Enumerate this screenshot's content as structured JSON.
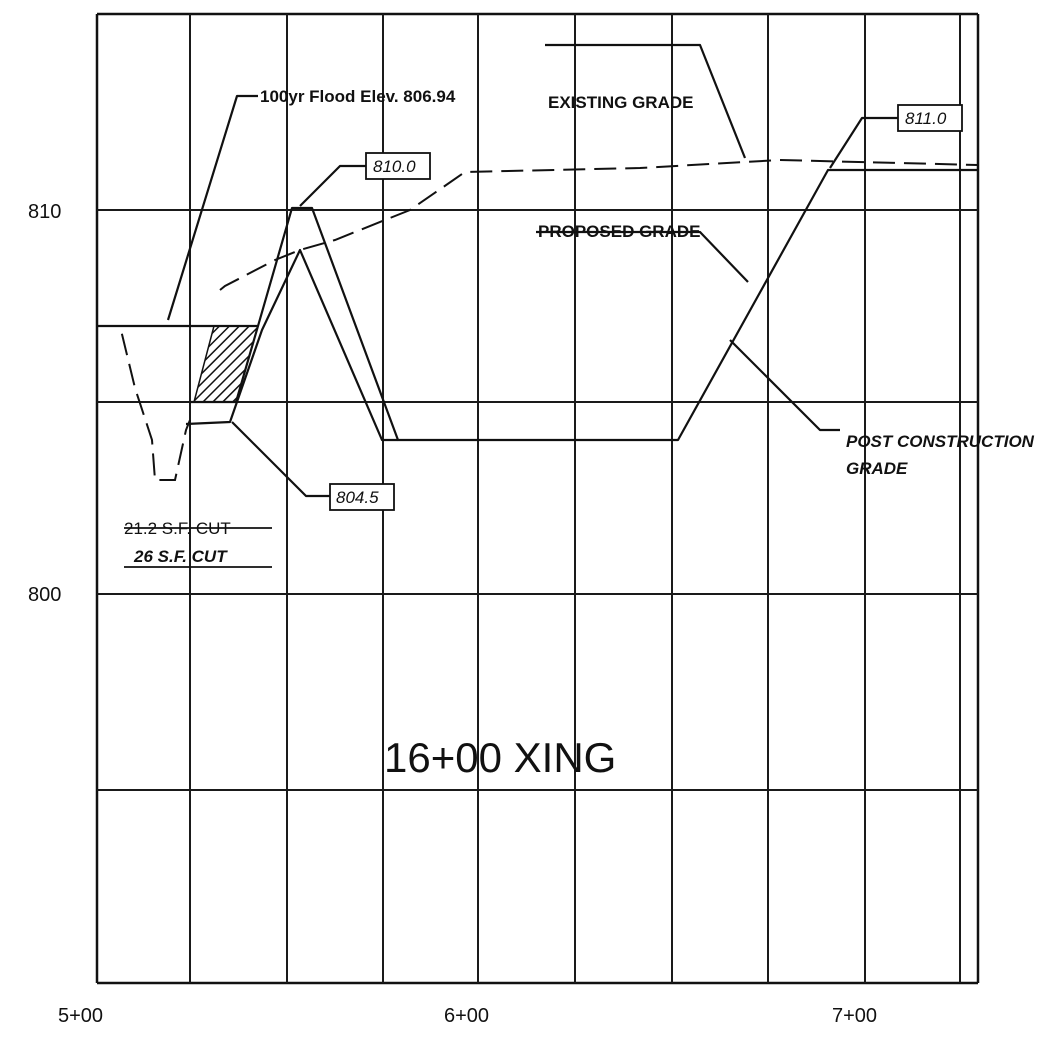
{
  "title": "16+00 XING",
  "y_ticks": [
    "810",
    "800"
  ],
  "x_ticks": [
    "5+00",
    "6+00",
    "7+00"
  ],
  "labels": {
    "flood": "100yr Flood Elev. 806.94",
    "existing_grade": "EXISTING GRADE",
    "proposed_grade": "PROPOSED GRADE",
    "post_construction_line1": "POST CONSTRUCTION",
    "post_construction_line2": "GRADE",
    "cut_old": "21.2 S.F. CUT",
    "cut_new": "26 S.F. CUT"
  },
  "callouts": {
    "elev_810": "810.0",
    "elev_811": "811.0",
    "elev_8045": "804.5"
  },
  "colors": {
    "line": "#111111",
    "background": "#ffffff"
  }
}
